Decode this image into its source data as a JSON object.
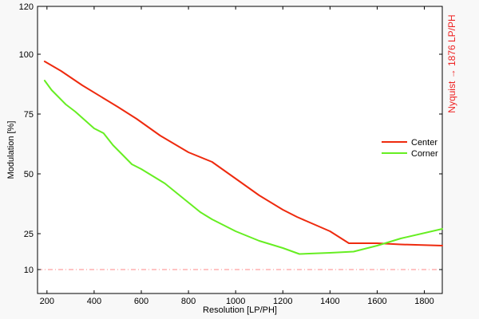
{
  "chart_data": {
    "type": "line",
    "title": "",
    "xlabel": "Resolution [LP/PH]",
    "ylabel": "Modulation [%]",
    "xlim": [
      160,
      1876
    ],
    "ylim": [
      0,
      120
    ],
    "xticks": [
      200,
      400,
      600,
      800,
      1000,
      1200,
      1400,
      1600,
      1800
    ],
    "yticks": [
      10,
      25,
      50,
      75,
      100,
      120
    ],
    "grid": false,
    "legend_position": "right",
    "annotation": {
      "text": "Nyquist → 1876 LP/PH",
      "color": "#ee2222"
    },
    "reference_line": {
      "y": 10,
      "style": "dashed",
      "color": "#ff8888"
    },
    "series": [
      {
        "name": "Center",
        "color": "#ee2a0e",
        "x": [
          190,
          260,
          350,
          450,
          500,
          580,
          680,
          800,
          900,
          1000,
          1100,
          1200,
          1260,
          1400,
          1480,
          1600,
          1700,
          1876
        ],
        "y": [
          97,
          93,
          87,
          81,
          78,
          73,
          66,
          59,
          55,
          48,
          41,
          35,
          32,
          26,
          21,
          21,
          20.5,
          20
        ]
      },
      {
        "name": "Corner",
        "color": "#66ee22",
        "x": [
          190,
          220,
          280,
          320,
          400,
          440,
          480,
          520,
          560,
          600,
          700,
          800,
          850,
          900,
          1000,
          1100,
          1200,
          1270,
          1400,
          1500,
          1600,
          1700,
          1876
        ],
        "y": [
          89,
          85,
          79,
          76,
          69,
          67,
          62,
          58,
          54,
          52,
          46,
          38,
          34,
          31,
          26,
          22,
          19,
          16.5,
          17,
          17.5,
          20,
          23,
          27
        ]
      }
    ]
  }
}
